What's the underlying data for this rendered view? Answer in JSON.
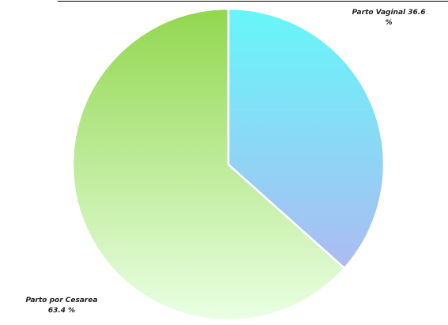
{
  "chart_data": {
    "type": "pie",
    "slices": [
      {
        "label_line1": "Parto Vaginal 36.6",
        "label_line2": "%",
        "value": 36.6,
        "color_top": "#66F7FA",
        "color_bottom": "#ADBBF2"
      },
      {
        "label_line1": "Parto por Cesarea",
        "label_line2": "63.4 %",
        "value": 63.4,
        "color_top": "#92D74F",
        "color_bottom": "#EAFFE4"
      }
    ],
    "start_angle": "top, clockwise",
    "legend": "none"
  }
}
